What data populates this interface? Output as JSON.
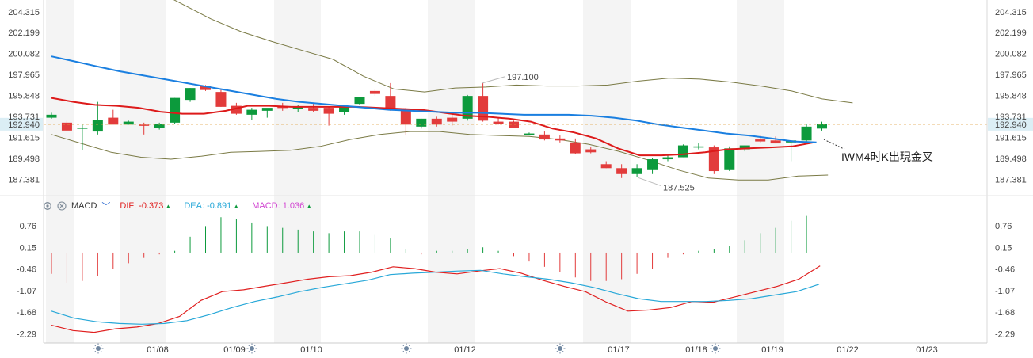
{
  "colors": {
    "up": "#0c9a3c",
    "down": "#e23b3b",
    "ma_red": "#dd1a1a",
    "ma_blue": "#1a7fe0",
    "bollinger": "#7a7a45",
    "dif": "#e02020",
    "dea": "#28a8d8",
    "macd_label": "#d248d2",
    "price_line": "#e0a040",
    "price_badge_bg": "#dbeef5",
    "shade": "#f4f4f4"
  },
  "macd_header": {
    "settings_icon": "gear-icon",
    "close_icon": "close-icon",
    "title": "MACD",
    "chevron": "chevron-down-icon",
    "dif": "DIF: -0.373",
    "dea": "DEA: -0.891",
    "macd": "MACD: 1.036",
    "arrow": "▲"
  },
  "annotation": "IWM4时K出現金叉",
  "chart_data": [
    {
      "type": "candlestick",
      "title": "",
      "y_ticks": [
        "204.315",
        "202.199",
        "200.082",
        "197.965",
        "195.848",
        "193.731",
        "191.615",
        "189.498",
        "187.381"
      ],
      "ylim": [
        185.8,
        205.5
      ],
      "current_price": "192.940",
      "high_label": "197.100",
      "low_label": "187.525",
      "candles": [
        [
          193.6,
          194.1,
          193.5,
          193.9
        ],
        [
          193.1,
          193.3,
          192.2,
          192.3
        ],
        [
          192.6,
          192.9,
          190.3,
          192.6
        ],
        [
          192.2,
          195.2,
          191.9,
          193.4
        ],
        [
          193.6,
          194.4,
          193.0,
          192.9
        ],
        [
          192.9,
          193.3,
          192.9,
          193.2
        ],
        [
          192.9,
          193.1,
          191.9,
          192.8
        ],
        [
          192.6,
          193.1,
          192.4,
          193.0
        ],
        [
          193.1,
          195.6,
          193.0,
          195.6
        ],
        [
          195.4,
          196.6,
          195.2,
          196.6
        ],
        [
          196.8,
          196.9,
          196.3,
          196.4
        ],
        [
          196.2,
          196.4,
          194.7,
          194.7
        ],
        [
          194.8,
          195.1,
          193.9,
          194.0
        ],
        [
          193.9,
          194.6,
          193.4,
          194.4
        ],
        [
          194.3,
          194.5,
          193.6,
          194.6
        ],
        [
          194.7,
          195.1,
          194.3,
          194.6
        ],
        [
          194.5,
          194.9,
          194.2,
          194.7
        ],
        [
          194.6,
          195.0,
          194.2,
          194.3
        ],
        [
          194.6,
          194.7,
          192.8,
          194.0
        ],
        [
          194.2,
          194.8,
          193.9,
          194.8
        ],
        [
          195.0,
          195.7,
          194.9,
          195.7
        ],
        [
          196.3,
          196.5,
          195.8,
          196.0
        ],
        [
          195.8,
          197.1,
          194.3,
          194.4
        ],
        [
          194.3,
          194.6,
          191.8,
          192.9
        ],
        [
          192.7,
          193.5,
          192.5,
          193.5
        ],
        [
          193.5,
          193.7,
          192.7,
          192.9
        ],
        [
          193.6,
          193.9,
          192.8,
          193.2
        ],
        [
          193.5,
          195.9,
          193.3,
          195.8
        ],
        [
          195.8,
          197.1,
          193.2,
          193.3
        ],
        [
          193.2,
          193.6,
          192.9,
          193.0
        ],
        [
          193.2,
          193.3,
          192.6,
          192.6
        ],
        [
          192.0,
          192.1,
          191.8,
          192.0
        ],
        [
          191.9,
          192.2,
          191.3,
          191.4
        ],
        [
          191.5,
          191.8,
          191.1,
          191.3
        ],
        [
          191.1,
          191.5,
          189.9,
          190.0
        ],
        [
          190.4,
          190.6,
          190.0,
          190.1
        ],
        [
          188.9,
          189.2,
          188.5,
          188.5
        ],
        [
          188.5,
          188.9,
          187.5,
          187.9
        ],
        [
          187.9,
          188.9,
          187.6,
          188.5
        ],
        [
          188.3,
          189.5,
          187.9,
          189.4
        ],
        [
          189.4,
          189.8,
          189.2,
          189.6
        ],
        [
          189.6,
          190.9,
          189.6,
          190.8
        ],
        [
          190.7,
          191.0,
          190.4,
          190.7
        ],
        [
          190.6,
          190.8,
          187.9,
          188.2
        ],
        [
          188.3,
          190.7,
          188.2,
          190.5
        ],
        [
          190.4,
          190.8,
          190.2,
          190.8
        ],
        [
          191.4,
          191.8,
          191.1,
          191.2
        ],
        [
          191.3,
          191.7,
          191.0,
          191.0
        ],
        [
          191.1,
          191.3,
          189.2,
          191.3
        ],
        [
          191.3,
          193.0,
          191.1,
          192.7
        ],
        [
          192.5,
          193.2,
          192.3,
          193.0
        ]
      ],
      "ma_red": [
        195.6,
        195.2,
        194.9,
        194.8,
        194.6,
        194.2,
        194.0,
        194.0,
        194.3,
        194.8,
        194.8,
        194.7,
        194.7,
        194.7,
        194.7,
        194.6,
        194.5,
        194.4,
        194.1,
        193.8,
        193.7,
        193.5,
        193.2,
        192.5,
        192.1,
        191.5,
        190.5,
        189.8,
        189.8,
        189.9,
        190.1,
        190.4,
        190.5,
        190.6,
        190.7,
        191.1
      ],
      "ma_blue": [
        199.8,
        199.3,
        198.8,
        198.3,
        197.9,
        197.5,
        197.1,
        196.7,
        196.3,
        195.9,
        195.5,
        195.2,
        195.0,
        194.8,
        194.6,
        194.4,
        194.3,
        194.2,
        194.1,
        194.1,
        194.0,
        193.9,
        193.9,
        193.9,
        193.8,
        193.6,
        193.3,
        192.9,
        192.6,
        192.3,
        192.0,
        191.8,
        191.5,
        191.2,
        191.1
      ],
      "bb_upper": [
        207.5,
        206.8,
        205.2,
        203.6,
        202.3,
        201.3,
        200.4,
        199.5,
        197.8,
        196.5,
        196.2,
        196.6,
        196.7,
        196.9,
        196.8,
        196.8,
        196.9,
        197.3,
        197.6,
        197.5,
        197.2,
        196.8,
        196.3,
        195.5,
        195.1
      ],
      "bb_lower": [
        191.9,
        191.0,
        190.1,
        189.6,
        189.4,
        189.7,
        190.1,
        190.2,
        190.3,
        190.7,
        191.4,
        191.9,
        192.2,
        192.2,
        191.9,
        191.8,
        191.7,
        191.4,
        190.9,
        190.2,
        189.3,
        188.3,
        187.5,
        187.3,
        187.3,
        187.7,
        187.8
      ]
    },
    {
      "type": "macd",
      "y_ticks": [
        "0.76",
        "0.15",
        "-0.46",
        "-1.07",
        "-1.68",
        "-2.29"
      ],
      "ylim": [
        -2.55,
        1.05
      ],
      "histogram": [
        -0.6,
        -0.85,
        -0.8,
        -0.65,
        -0.45,
        -0.3,
        -0.15,
        -0.05,
        0.05,
        0.45,
        0.75,
        1.0,
        0.95,
        0.85,
        0.75,
        0.7,
        0.65,
        0.6,
        0.55,
        0.6,
        0.6,
        0.5,
        0.4,
        0.1,
        -0.05,
        0.05,
        0.05,
        0.1,
        0.15,
        0.05,
        -0.1,
        -0.25,
        -0.4,
        -0.55,
        -0.7,
        -0.8,
        -0.8,
        -0.75,
        -0.6,
        -0.45,
        -0.15,
        -0.05,
        0.05,
        0.1,
        0.2,
        0.35,
        0.55,
        0.7,
        0.9,
        1.036
      ],
      "dif": [
        -2.05,
        -2.2,
        -2.25,
        -2.15,
        -2.1,
        -2.0,
        -1.8,
        -1.35,
        -1.1,
        -1.05,
        -0.95,
        -0.85,
        -0.75,
        -0.68,
        -0.65,
        -0.55,
        -0.4,
        -0.45,
        -0.55,
        -0.6,
        -0.52,
        -0.45,
        -0.58,
        -0.78,
        -0.95,
        -1.1,
        -1.4,
        -1.65,
        -1.62,
        -1.55,
        -1.38,
        -1.4,
        -1.25,
        -1.1,
        -0.95,
        -0.75,
        -0.373
      ],
      "dea": [
        -1.65,
        -1.85,
        -1.95,
        -2.0,
        -2.02,
        -2.0,
        -1.92,
        -1.75,
        -1.55,
        -1.38,
        -1.25,
        -1.1,
        -0.98,
        -0.88,
        -0.78,
        -0.62,
        -0.58,
        -0.55,
        -0.52,
        -0.5,
        -0.6,
        -0.68,
        -0.75,
        -0.85,
        -0.98,
        -1.15,
        -1.3,
        -1.38,
        -1.38,
        -1.38,
        -1.35,
        -1.3,
        -1.2,
        -1.1,
        -0.891
      ]
    }
  ],
  "x_axis": {
    "labels": [
      "01/08",
      "01/09",
      "01/10",
      "01/12",
      "01/17",
      "01/18",
      "01/19",
      "01/22",
      "01/23"
    ],
    "sun_icon": "sun-icon"
  }
}
